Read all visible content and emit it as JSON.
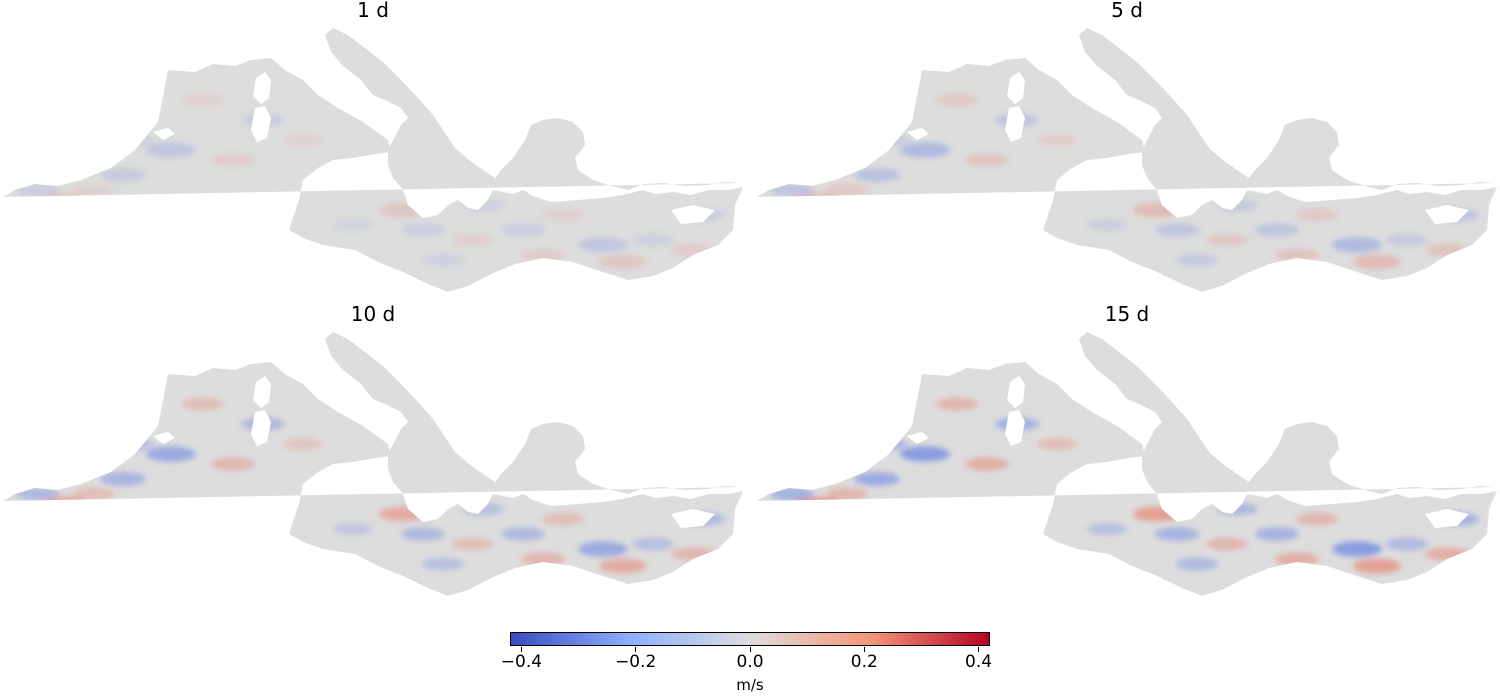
{
  "chart_data": {
    "type": "heatmap",
    "colormap": "coolwarm",
    "panels": [
      {
        "title": "1 d",
        "intensity": 0.35
      },
      {
        "title": "5 d",
        "intensity": 0.55
      },
      {
        "title": "10 d",
        "intensity": 0.8
      },
      {
        "title": "15 d",
        "intensity": 1.0
      }
    ],
    "colorbar": {
      "label": "m/s",
      "range": [
        -0.42,
        0.42
      ],
      "ticks": [
        -0.4,
        -0.2,
        0.0,
        0.2,
        0.4
      ],
      "tick_labels": [
        "−0.4",
        "−0.2",
        "0.0",
        "0.2",
        "0.4"
      ],
      "colors": {
        "low": "#3b4cc0",
        "mid": "#dddddd",
        "high": "#b40426"
      }
    }
  }
}
